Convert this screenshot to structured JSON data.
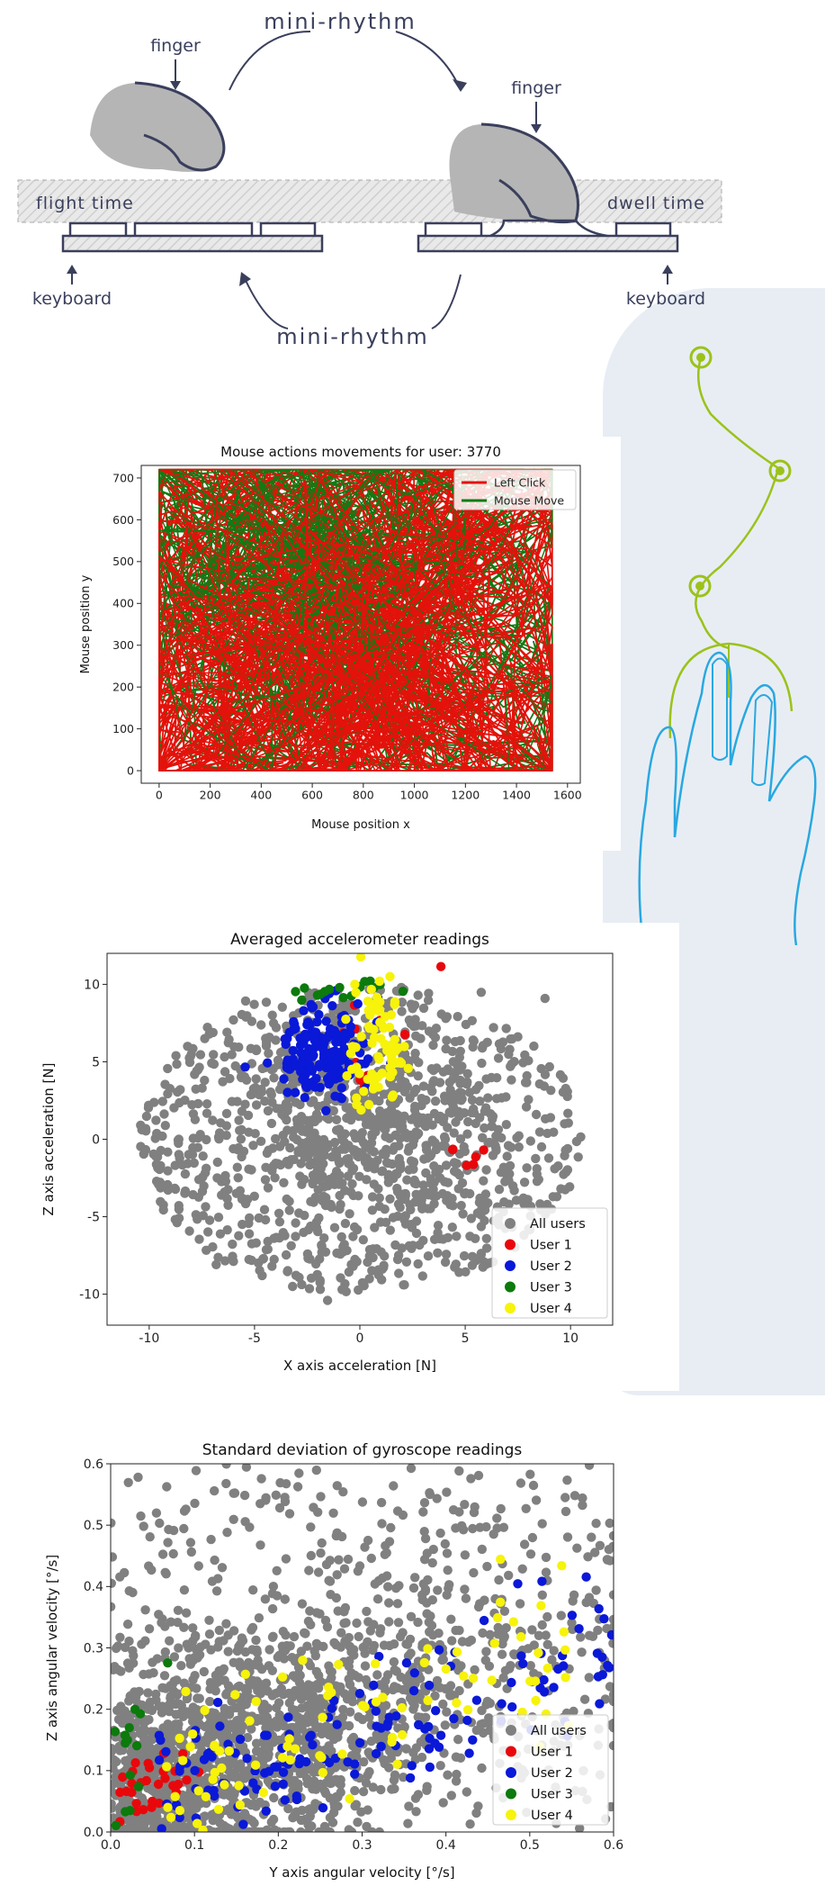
{
  "keystroke": {
    "label_top": "mini-rhythm",
    "label_bottom": "mini-rhythm",
    "finger_left": "finger",
    "finger_right": "finger",
    "flight_time": "flight time",
    "dwell_time": "dwell time",
    "keyboard_left": "keyboard",
    "keyboard_right": "keyboard",
    "color_line": "#3a3f5c",
    "color_finger": "#b5b5b5"
  },
  "decor": {
    "icons": [
      "mouse-hand-icon",
      "path-node-icon"
    ],
    "color_mouse": "#29a8e0",
    "color_path": "#9cc21a",
    "color_bg": "#e8edf4"
  },
  "chart_data": [
    {
      "type": "line",
      "title": "Mouse actions movements for user: 3770",
      "xlabel": "Mouse position x",
      "ylabel": "Mouse position y",
      "xlim": [
        -70,
        1650
      ],
      "ylim": [
        -30,
        730
      ],
      "xticks": [
        0,
        200,
        400,
        600,
        800,
        1000,
        1200,
        1400,
        1600
      ],
      "yticks": [
        0,
        100,
        200,
        300,
        400,
        500,
        600,
        700
      ],
      "legend_position": "top-right",
      "series": [
        {
          "name": "Left Click",
          "color": "#e3120b"
        },
        {
          "name": "Mouse Move",
          "color": "#137a13"
        }
      ]
    },
    {
      "type": "scatter",
      "title": "Averaged accelerometer readings",
      "xlabel": "X axis acceleration [N]",
      "ylabel": "Z axis acceleration [N]",
      "xlim": [
        -12,
        12
      ],
      "ylim": [
        -12,
        12
      ],
      "xticks": [
        -10,
        -5,
        0,
        5,
        10
      ],
      "yticks": [
        -10,
        -5,
        0,
        5,
        10
      ],
      "legend_position": "lower-right",
      "series": [
        {
          "name": "All users",
          "color": "#808080"
        },
        {
          "name": "User 1",
          "color": "#e8080c"
        },
        {
          "name": "User 2",
          "color": "#0a18d8"
        },
        {
          "name": "User 3",
          "color": "#0c7a0c"
        },
        {
          "name": "User 4",
          "color": "#f7f30a"
        }
      ]
    },
    {
      "type": "scatter",
      "title": "Standard deviation of gyroscope readings",
      "xlabel": "Y axis angular velocity [°/s]",
      "ylabel": "Z axis angular velocity [°/s]",
      "xlim": [
        0.0,
        0.6
      ],
      "ylim": [
        0.0,
        0.6
      ],
      "xticks": [
        "0.0",
        "0.1",
        "0.2",
        "0.3",
        "0.4",
        "0.5",
        "0.6"
      ],
      "yticks": [
        "0.0",
        "0.1",
        "0.2",
        "0.3",
        "0.4",
        "0.5",
        "0.6"
      ],
      "legend_position": "lower-right",
      "series": [
        {
          "name": "All users",
          "color": "#808080"
        },
        {
          "name": "User 1",
          "color": "#e8080c"
        },
        {
          "name": "User 2",
          "color": "#0a18d8"
        },
        {
          "name": "User 3",
          "color": "#0c7a0c"
        },
        {
          "name": "User 4",
          "color": "#f7f30a"
        }
      ]
    }
  ]
}
